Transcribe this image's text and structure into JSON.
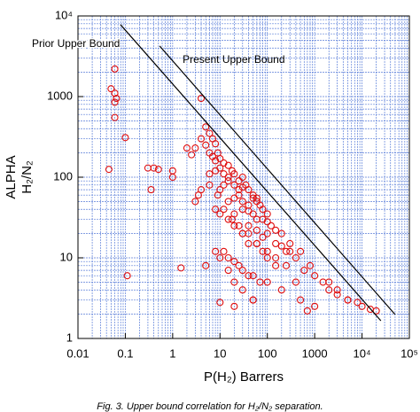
{
  "chart_data": {
    "type": "scatter",
    "xlabel": "P(H₂) Barrers",
    "ylabel": [
      "ALPHA",
      "H₂/N₂"
    ],
    "caption": "Fig. 3. Upper bound correlation for H₂/N₂ separation.",
    "xscale": "log",
    "yscale": "log",
    "grid": true,
    "minor_grid": true,
    "grid_color": "#5b7fd9",
    "xlim": [
      0.01,
      100000
    ],
    "ylim": [
      1,
      10000
    ],
    "xticks": [
      0.01,
      0.1,
      1,
      10,
      100,
      1000,
      {
        "value": 10000,
        "label": "10⁴"
      },
      {
        "value": 100000,
        "label": "10⁵"
      }
    ],
    "yticks": [
      1,
      10,
      100,
      1000,
      {
        "value": 10000,
        "label": "10⁴"
      }
    ],
    "series": [
      {
        "color": "#e01010",
        "x": [
          4,
          5,
          6,
          7,
          8,
          3,
          4,
          5,
          6,
          7,
          8,
          9,
          10,
          12,
          15,
          6,
          8,
          10,
          12,
          15,
          18,
          20,
          25,
          30,
          10,
          12,
          15,
          20,
          25,
          30,
          35,
          40,
          50,
          60,
          15,
          20,
          25,
          30,
          40,
          50,
          60,
          70,
          80,
          100,
          20,
          30,
          40,
          50,
          60,
          80,
          100,
          120,
          150,
          200,
          30,
          40,
          60,
          80,
          100,
          150,
          200,
          250,
          300,
          400,
          8,
          10,
          15,
          20,
          30,
          40,
          60,
          80,
          100,
          150,
          12,
          15,
          20,
          25,
          30,
          40,
          50,
          70,
          100,
          200,
          5,
          8,
          10,
          15,
          20,
          30,
          50,
          300,
          500,
          800,
          1000,
          1500,
          2000,
          3000,
          5000,
          8000,
          10000,
          15000,
          20000,
          2000,
          3000,
          5000,
          1000,
          700,
          500,
          3,
          3.5,
          4,
          6,
          9,
          12,
          18,
          25,
          40,
          60,
          100,
          150,
          250,
          400,
          600,
          10,
          20,
          50,
          0.06,
          0.05,
          0.06,
          0.065,
          0.06,
          0.06,
          0.045,
          0.1,
          0.11,
          0.4,
          0.5,
          0.3,
          0.35,
          1,
          1,
          1.5,
          2,
          2.5
        ],
        "values": [
          950,
          420,
          350,
          300,
          260,
          230,
          300,
          250,
          200,
          180,
          160,
          200,
          170,
          150,
          140,
          110,
          120,
          130,
          110,
          100,
          120,
          110,
          90,
          100,
          70,
          80,
          90,
          80,
          70,
          75,
          80,
          70,
          60,
          55,
          50,
          55,
          60,
          50,
          45,
          55,
          50,
          45,
          40,
          35,
          35,
          40,
          38,
          35,
          30,
          30,
          28,
          25,
          22,
          20,
          20,
          25,
          22,
          18,
          20,
          15,
          14,
          12,
          12,
          10,
          40,
          35,
          30,
          25,
          20,
          15,
          15,
          12,
          10,
          8,
          12,
          10,
          9,
          8,
          7,
          6,
          6,
          5,
          5,
          4,
          8,
          12,
          10,
          7,
          5,
          4,
          3,
          15,
          12,
          8,
          6,
          5,
          4,
          3.5,
          3,
          2.8,
          2.5,
          2.3,
          2.2,
          5,
          4,
          3,
          2.5,
          2.2,
          3,
          50,
          60,
          70,
          80,
          60,
          40,
          30,
          25,
          20,
          15,
          12,
          10,
          8,
          5,
          7,
          2.8,
          2.5,
          3,
          2200,
          1250,
          1100,
          950,
          850,
          550,
          125,
          310,
          6,
          130,
          125,
          130,
          70,
          100,
          120,
          7.5,
          230,
          190
        ]
      },
      {
        "name": "Prior Upper Bound",
        "type": "line",
        "color": "#000000",
        "x": [
          0.079,
          25000
        ],
        "values": [
          7800,
          1.66
        ]
      },
      {
        "name": "Present Upper Bound",
        "type": "line",
        "color": "#000000",
        "x": [
          0.53,
          50000
        ],
        "values": [
          4240,
          1.98
        ]
      }
    ]
  }
}
